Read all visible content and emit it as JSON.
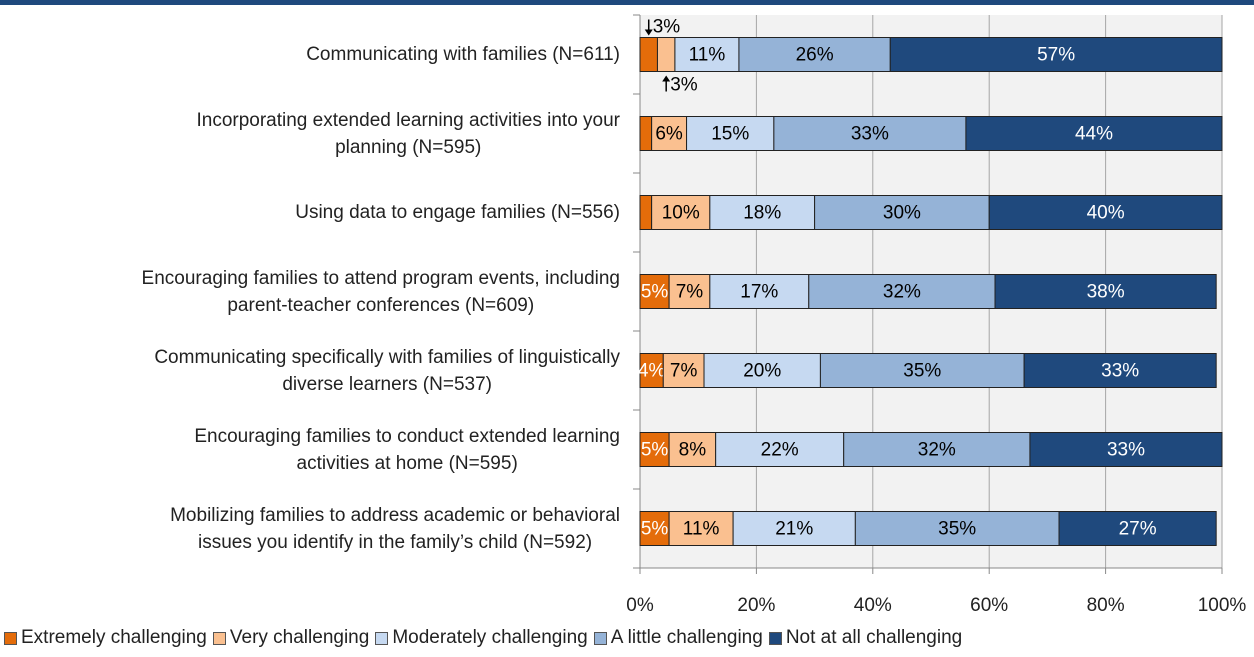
{
  "chart_data": {
    "type": "stacked_barh",
    "categories": [
      "Communicating with families (N=611)",
      "Incorporating extended learning activities into your\nplanning (N=595)",
      "Using data to engage families (N=556)",
      "Encouraging families to attend program events, including\nparent-teacher conferences (N=609)",
      "Communicating specifically with families of  linguistically\ndiverse learners (N=537)",
      "Encouraging families to conduct extended learning\nactivities at home (N=595)",
      "Mobilizing families to address academic or behavioral\nissues you identify in the family’s child (N=592)"
    ],
    "series": [
      {
        "name": "Extremely challenging",
        "color": "#e46c0a",
        "values": [
          3,
          2,
          2,
          5,
          4,
          5,
          5
        ],
        "value_labels": [
          "3%",
          null,
          null,
          "5%",
          "4%",
          "5%",
          "5%"
        ]
      },
      {
        "name": "Very challenging",
        "color": "#fac090",
        "values": [
          3,
          6,
          10,
          7,
          7,
          8,
          11
        ],
        "value_labels": [
          "3%",
          "6%",
          "10%",
          "7%",
          "7%",
          "8%",
          "11%"
        ]
      },
      {
        "name": "Moderately challenging",
        "color": "#c6d9f1",
        "values": [
          11,
          15,
          18,
          17,
          20,
          22,
          21
        ],
        "value_labels": [
          "11%",
          "15%",
          "18%",
          "17%",
          "20%",
          "22%",
          "21%"
        ]
      },
      {
        "name": "A little challenging",
        "color": "#95b3d7",
        "values": [
          26,
          33,
          30,
          32,
          35,
          32,
          35
        ],
        "value_labels": [
          "26%",
          "33%",
          "30%",
          "32%",
          "35%",
          "32%",
          "35%"
        ]
      },
      {
        "name": "Not at all challenging",
        "color": "#1f497d",
        "values": [
          57,
          44,
          40,
          38,
          33,
          33,
          27
        ],
        "value_labels": [
          "57%",
          "44%",
          "40%",
          "38%",
          "33%",
          "33%",
          "27%"
        ]
      }
    ],
    "xlim": [
      0,
      100
    ],
    "xticks": [
      {
        "value": 0,
        "label": "0%"
      },
      {
        "value": 20,
        "label": "20%"
      },
      {
        "value": 40,
        "label": "40%"
      },
      {
        "value": 60,
        "label": "60%"
      },
      {
        "value": 80,
        "label": "80%"
      },
      {
        "value": 100,
        "label": "100%"
      }
    ],
    "grid": true,
    "legend": "bottom"
  }
}
